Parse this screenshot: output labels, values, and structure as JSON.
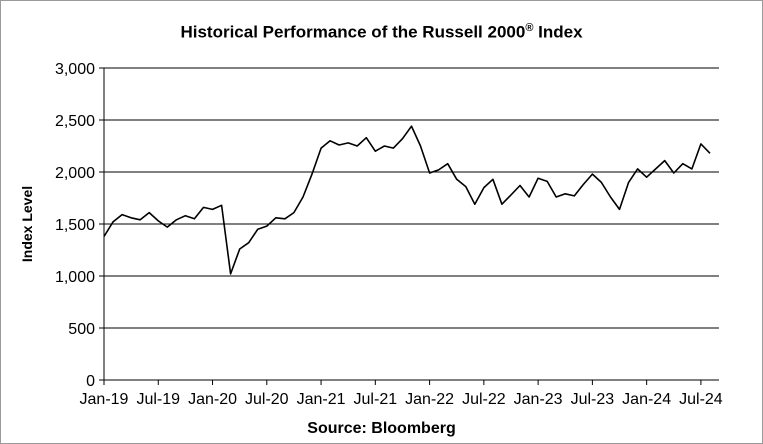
{
  "chart_data": {
    "type": "line",
    "title_main": "Historical Performance of the Russell 2000",
    "title_mark": "®",
    "title_tail": " Index",
    "ylabel": "Index Level",
    "xlabel": "Source: Bloomberg",
    "ylim": [
      0,
      3000
    ],
    "yticks": [
      0,
      500,
      1000,
      1500,
      2000,
      2500,
      3000
    ],
    "ytick_labels": [
      "0",
      "500",
      "1,000",
      "1,500",
      "2,000",
      "2,500",
      "3,000"
    ],
    "xlim": [
      "2019-01",
      "2024-09"
    ],
    "xticks": [
      "Jan-19",
      "Jul-19",
      "Jan-20",
      "Jul-20",
      "Jan-21",
      "Jul-21",
      "Jan-22",
      "Jul-22",
      "Jan-23",
      "Jul-23",
      "Jan-24",
      "Jul-24"
    ],
    "grid": "horizontal",
    "line_color": "#000000",
    "series": [
      {
        "x": [
          "2019-01",
          "2019-02",
          "2019-03",
          "2019-04",
          "2019-05",
          "2019-06",
          "2019-07",
          "2019-08",
          "2019-09",
          "2019-10",
          "2019-11",
          "2019-12",
          "2020-01",
          "2020-02",
          "2020-03",
          "2020-04",
          "2020-05",
          "2020-06",
          "2020-07",
          "2020-08",
          "2020-09",
          "2020-10",
          "2020-11",
          "2020-12",
          "2021-01",
          "2021-02",
          "2021-03",
          "2021-04",
          "2021-05",
          "2021-06",
          "2021-07",
          "2021-08",
          "2021-09",
          "2021-10",
          "2021-11",
          "2021-12",
          "2022-01",
          "2022-02",
          "2022-03",
          "2022-04",
          "2022-05",
          "2022-06",
          "2022-07",
          "2022-08",
          "2022-09",
          "2022-10",
          "2022-11",
          "2022-12",
          "2023-01",
          "2023-02",
          "2023-03",
          "2023-04",
          "2023-05",
          "2023-06",
          "2023-07",
          "2023-08",
          "2023-09",
          "2023-10",
          "2023-11",
          "2023-12",
          "2024-01",
          "2024-02",
          "2024-03",
          "2024-04",
          "2024-05",
          "2024-06",
          "2024-07",
          "2024-08"
        ],
        "values": [
          1380,
          1520,
          1590,
          1560,
          1540,
          1610,
          1530,
          1470,
          1540,
          1580,
          1550,
          1660,
          1640,
          1680,
          1020,
          1260,
          1320,
          1450,
          1480,
          1560,
          1550,
          1610,
          1760,
          1980,
          2230,
          2300,
          2260,
          2280,
          2250,
          2330,
          2200,
          2250,
          2230,
          2320,
          2440,
          2250,
          1990,
          2020,
          2080,
          1930,
          1860,
          1690,
          1850,
          1930,
          1690,
          1780,
          1870,
          1760,
          1940,
          1910,
          1760,
          1790,
          1770,
          1880,
          1980,
          1900,
          1760,
          1640,
          1900,
          2030,
          1950,
          2030,
          2110,
          1990,
          2080,
          2030,
          2270,
          2180
        ]
      }
    ]
  }
}
